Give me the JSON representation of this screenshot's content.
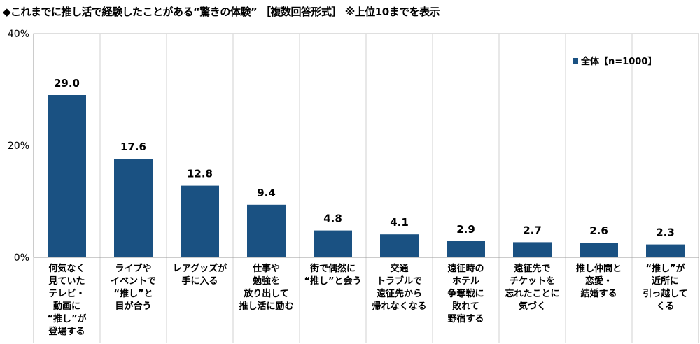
{
  "title": "◆これまでに推し活で経験したことがある“驚きの体験” ［複数回答形式］ ※上位10までを表示",
  "chart_data": {
    "type": "bar",
    "title": "◆これまでに推し活で経験したことがある“驚きの体験” ［複数回答形式］ ※上位10までを表示",
    "categories": [
      [
        "何気なく",
        "見ていた",
        "テレビ・",
        "動画に",
        "“推し”が",
        "登場する"
      ],
      [
        "ライブや",
        "イベントで",
        "“推し”と",
        "目が合う"
      ],
      [
        "レアグッズが",
        "手に入る"
      ],
      [
        "仕事や",
        "勉強を",
        "放り出して",
        "推し活に励む"
      ],
      [
        "街で偶然に",
        "“推し”と会う"
      ],
      [
        "交通",
        "トラブルで",
        "遠征先から",
        "帰れなくなる"
      ],
      [
        "遠征時の",
        "ホテル",
        "争奪戦に",
        "敗れて",
        "野宿する"
      ],
      [
        "遠征先で",
        "チケットを",
        "忘れたことに",
        "気づく"
      ],
      [
        "推し仲間と",
        "恋愛・",
        "結婚する"
      ],
      [
        "“推し”が",
        "近所に",
        "引っ越して",
        "くる"
      ]
    ],
    "series": [
      {
        "name": "全体【n=1000】",
        "values": [
          29.0,
          17.6,
          12.8,
          9.4,
          4.8,
          4.1,
          2.9,
          2.7,
          2.6,
          2.3
        ]
      }
    ],
    "data_labels": [
      "29.0",
      "17.6",
      "12.8",
      "9.4",
      "4.8",
      "4.1",
      "2.9",
      "2.7",
      "2.6",
      "2.3"
    ],
    "ylim": [
      0,
      40
    ],
    "yticks": [
      "0%",
      "20%",
      "40%"
    ],
    "ytick_values": [
      0,
      20,
      40
    ],
    "grid": "vertical category separators",
    "legend": "top-right",
    "colors": {
      "bar": "#1a5182"
    }
  }
}
